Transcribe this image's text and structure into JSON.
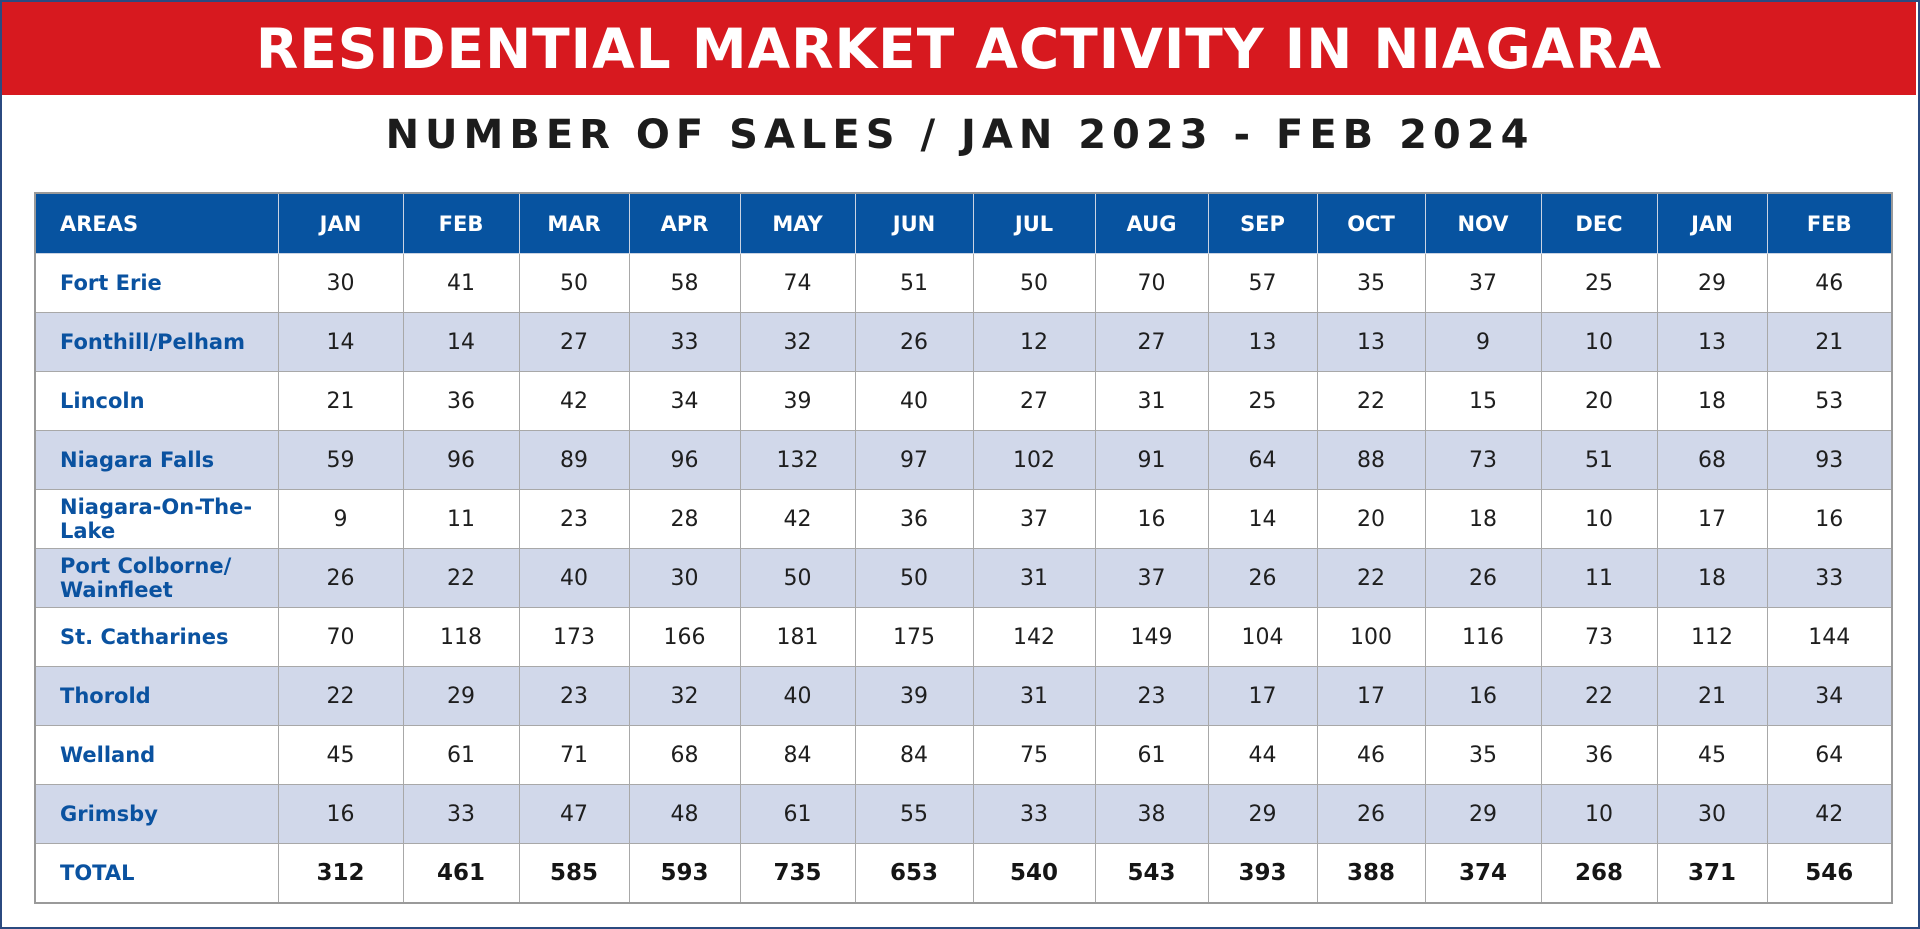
{
  "title": "RESIDENTIAL MARKET ACTIVITY IN NIAGARA",
  "subtitle": "NUMBER OF SALES / JAN 2023 - FEB 2024",
  "colors": {
    "title_bar": "#d7191f",
    "header_row": "#0753a0",
    "alt_row": "#d1d8ea",
    "area_text": "#0a52a0"
  },
  "chart_data": {
    "type": "table",
    "title": "NUMBER OF SALES / JAN 2023 - FEB 2024",
    "row_header_label": "AREAS",
    "columns": [
      "JAN",
      "FEB",
      "MAR",
      "APR",
      "MAY",
      "JUN",
      "JUL",
      "AUG",
      "SEP",
      "OCT",
      "NOV",
      "DEC",
      "JAN",
      "FEB"
    ],
    "rows": [
      {
        "area": "Fort Erie",
        "values": [
          30,
          41,
          50,
          58,
          74,
          51,
          50,
          70,
          57,
          35,
          37,
          25,
          29,
          46
        ]
      },
      {
        "area": "Fonthill/Pelham",
        "values": [
          14,
          14,
          27,
          33,
          32,
          26,
          12,
          27,
          13,
          13,
          9,
          10,
          13,
          21
        ]
      },
      {
        "area": "Lincoln",
        "values": [
          21,
          36,
          42,
          34,
          39,
          40,
          27,
          31,
          25,
          22,
          15,
          20,
          18,
          53
        ]
      },
      {
        "area": "Niagara Falls",
        "values": [
          59,
          96,
          89,
          96,
          132,
          97,
          102,
          91,
          64,
          88,
          73,
          51,
          68,
          93
        ]
      },
      {
        "area": "Niagara-On-The-Lake",
        "values": [
          9,
          11,
          23,
          28,
          42,
          36,
          37,
          16,
          14,
          20,
          18,
          10,
          17,
          16
        ]
      },
      {
        "area": "Port Colborne/ Wainfleet",
        "values": [
          26,
          22,
          40,
          30,
          50,
          50,
          31,
          37,
          26,
          22,
          26,
          11,
          18,
          33
        ]
      },
      {
        "area": "St. Catharines",
        "values": [
          70,
          118,
          173,
          166,
          181,
          175,
          142,
          149,
          104,
          100,
          116,
          73,
          112,
          144
        ]
      },
      {
        "area": "Thorold",
        "values": [
          22,
          29,
          23,
          32,
          40,
          39,
          31,
          23,
          17,
          17,
          16,
          22,
          21,
          34
        ]
      },
      {
        "area": "Welland",
        "values": [
          45,
          61,
          71,
          68,
          84,
          84,
          75,
          61,
          44,
          46,
          35,
          36,
          45,
          64
        ]
      },
      {
        "area": "Grimsby",
        "values": [
          16,
          33,
          47,
          48,
          61,
          55,
          33,
          38,
          29,
          26,
          29,
          10,
          30,
          42
        ]
      }
    ],
    "total": {
      "area": "TOTAL",
      "values": [
        312,
        461,
        585,
        593,
        735,
        653,
        540,
        543,
        393,
        388,
        374,
        268,
        371,
        546
      ]
    }
  }
}
